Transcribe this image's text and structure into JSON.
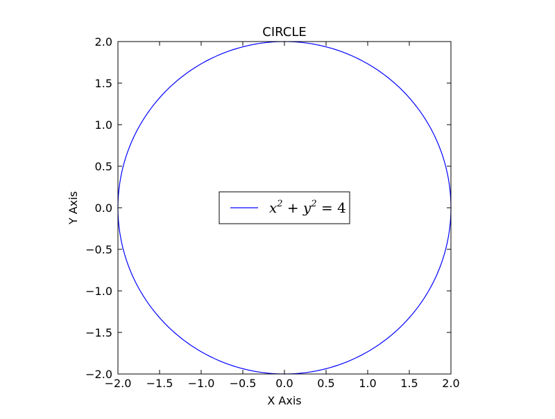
{
  "chart_data": {
    "type": "line",
    "title": "CIRCLE",
    "xlabel": "X Axis",
    "ylabel": "Y Axis",
    "xlim": [
      -2.0,
      2.0
    ],
    "ylim": [
      -2.0,
      2.0
    ],
    "xticks": [
      -2.0,
      -1.5,
      -1.0,
      -0.5,
      0.0,
      0.5,
      1.0,
      1.5,
      2.0
    ],
    "yticks": [
      -2.0,
      -1.5,
      -1.0,
      -0.5,
      0.0,
      0.5,
      1.0,
      1.5,
      2.0
    ],
    "xtick_labels": [
      "−2.0",
      "−1.5",
      "−1.0",
      "−0.5",
      "0.0",
      "0.5",
      "1.0",
      "1.5",
      "2.0"
    ],
    "ytick_labels": [
      "−2.0",
      "−1.5",
      "−1.0",
      "−0.5",
      "0.0",
      "0.5",
      "1.0",
      "1.5",
      "2.0"
    ],
    "grid": false,
    "legend_position": "center",
    "series": [
      {
        "name": "x^2 + y^2 = 4",
        "name_display": {
          "a": "x",
          "a_exp": "2",
          "op": " + ",
          "b": "y",
          "b_exp": "2",
          "eq": " = ",
          "rhs": "4"
        },
        "color": "#0000ff",
        "shape": "circle",
        "center": [
          0,
          0
        ],
        "radius": 2
      }
    ]
  }
}
